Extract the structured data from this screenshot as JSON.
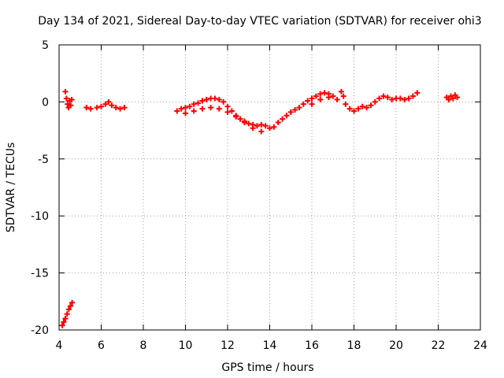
{
  "chart_data": {
    "type": "scatter",
    "title": "Day 134 of 2021, Sidereal Day-to-day VTEC variation (SDTVAR) for receiver ohi3",
    "xlabel": "GPS time / hours",
    "ylabel": "SDTVAR / TECUs",
    "xlim": [
      4,
      24
    ],
    "ylim": [
      -20,
      5
    ],
    "xticks": [
      4,
      6,
      8,
      10,
      12,
      14,
      16,
      18,
      20,
      22,
      24
    ],
    "yticks": [
      -20,
      -15,
      -10,
      -5,
      0,
      5
    ],
    "grid": true,
    "series": [
      {
        "name": "SDTVAR",
        "color": "#ff0000",
        "marker": "plus",
        "points": [
          [
            4.15,
            -19.6
          ],
          [
            4.22,
            -19.3
          ],
          [
            4.3,
            -19.0
          ],
          [
            4.38,
            -18.6
          ],
          [
            4.46,
            -18.2
          ],
          [
            4.54,
            -17.9
          ],
          [
            4.62,
            -17.6
          ],
          [
            4.3,
            0.9
          ],
          [
            4.35,
            0.3
          ],
          [
            4.4,
            -0.2
          ],
          [
            4.45,
            -0.5
          ],
          [
            4.5,
            0.1
          ],
          [
            4.55,
            -0.3
          ],
          [
            4.6,
            0.2
          ],
          [
            5.3,
            -0.5
          ],
          [
            5.5,
            -0.6
          ],
          [
            5.8,
            -0.5
          ],
          [
            6.0,
            -0.4
          ],
          [
            6.2,
            -0.2
          ],
          [
            6.35,
            0.0
          ],
          [
            6.5,
            -0.3
          ],
          [
            6.7,
            -0.5
          ],
          [
            6.9,
            -0.6
          ],
          [
            7.1,
            -0.5
          ],
          [
            9.6,
            -0.8
          ],
          [
            9.8,
            -0.6
          ],
          [
            10.0,
            -0.5
          ],
          [
            10.2,
            -0.4
          ],
          [
            10.4,
            -0.2
          ],
          [
            10.6,
            -0.1
          ],
          [
            10.8,
            0.1
          ],
          [
            11.0,
            0.2
          ],
          [
            11.2,
            0.3
          ],
          [
            11.4,
            0.3
          ],
          [
            11.6,
            0.2
          ],
          [
            11.8,
            0.0
          ],
          [
            12.0,
            -0.4
          ],
          [
            12.2,
            -0.8
          ],
          [
            12.4,
            -1.2
          ],
          [
            12.6,
            -1.5
          ],
          [
            12.8,
            -1.7
          ],
          [
            13.0,
            -1.9
          ],
          [
            13.2,
            -2.0
          ],
          [
            13.4,
            -2.1
          ],
          [
            13.6,
            -2.0
          ],
          [
            13.8,
            -2.1
          ],
          [
            14.0,
            -2.3
          ],
          [
            14.2,
            -2.2
          ],
          [
            14.4,
            -1.8
          ],
          [
            14.6,
            -1.5
          ],
          [
            10.0,
            -1.0
          ],
          [
            10.4,
            -0.8
          ],
          [
            10.8,
            -0.6
          ],
          [
            11.2,
            -0.5
          ],
          [
            11.6,
            -0.6
          ],
          [
            12.0,
            -0.9
          ],
          [
            12.4,
            -1.3
          ],
          [
            12.8,
            -1.8
          ],
          [
            13.2,
            -2.3
          ],
          [
            13.6,
            -2.6
          ],
          [
            14.8,
            -1.2
          ],
          [
            15.0,
            -0.9
          ],
          [
            15.2,
            -0.7
          ],
          [
            15.4,
            -0.5
          ],
          [
            15.6,
            -0.2
          ],
          [
            15.8,
            0.1
          ],
          [
            16.0,
            0.3
          ],
          [
            16.2,
            0.5
          ],
          [
            16.4,
            0.7
          ],
          [
            16.6,
            0.8
          ],
          [
            16.8,
            0.7
          ],
          [
            17.0,
            0.5
          ],
          [
            16.0,
            -0.2
          ],
          [
            16.4,
            0.2
          ],
          [
            16.8,
            0.4
          ],
          [
            17.2,
            0.2
          ],
          [
            17.4,
            0.9
          ],
          [
            17.5,
            0.5
          ],
          [
            17.6,
            -0.2
          ],
          [
            17.8,
            -0.6
          ],
          [
            18.0,
            -0.8
          ],
          [
            18.2,
            -0.6
          ],
          [
            18.4,
            -0.4
          ],
          [
            18.6,
            -0.5
          ],
          [
            18.8,
            -0.3
          ],
          [
            19.0,
            0.0
          ],
          [
            19.2,
            0.3
          ],
          [
            19.4,
            0.5
          ],
          [
            19.6,
            0.4
          ],
          [
            19.8,
            0.2
          ],
          [
            20.0,
            0.3
          ],
          [
            20.2,
            0.3
          ],
          [
            20.4,
            0.2
          ],
          [
            20.6,
            0.3
          ],
          [
            20.8,
            0.5
          ],
          [
            21.0,
            0.8
          ],
          [
            22.4,
            0.4
          ],
          [
            22.5,
            0.2
          ],
          [
            22.6,
            0.5
          ],
          [
            22.7,
            0.3
          ],
          [
            22.8,
            0.6
          ],
          [
            22.9,
            0.4
          ]
        ]
      }
    ]
  }
}
